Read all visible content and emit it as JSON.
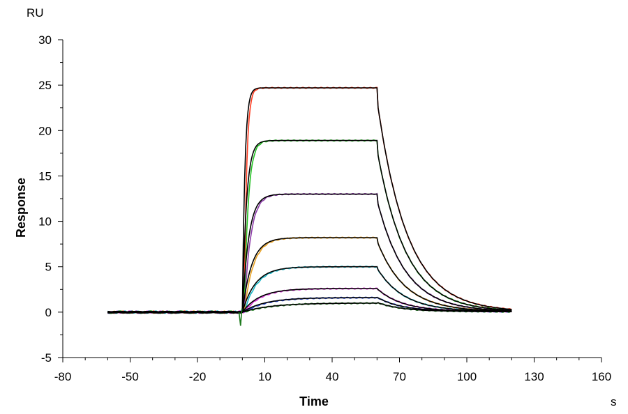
{
  "chart_data": {
    "type": "line",
    "title": "",
    "xlabel": "Time",
    "ylabel": "Response",
    "x_unit": "s",
    "y_unit": "RU",
    "xlim": [
      -80,
      160
    ],
    "ylim": [
      -5,
      30
    ],
    "x_ticks": [
      -80,
      -50,
      -20,
      10,
      40,
      70,
      100,
      130,
      160
    ],
    "y_ticks": [
      -5,
      0,
      5,
      10,
      15,
      20,
      25,
      30
    ],
    "x_tick_labels": [
      "-80",
      "-50",
      "-20",
      "10",
      "40",
      "70",
      "100",
      "130",
      "160"
    ],
    "y_tick_labels": [
      "-5",
      "0",
      "5",
      "10",
      "15",
      "20",
      "25",
      "30"
    ],
    "grid": false,
    "legend": "none",
    "association_start": 0,
    "dissociation_start": 60,
    "time_end": 120,
    "series": [
      {
        "plateau": 24.7,
        "kon": 0.9,
        "koff": 0.075,
        "color": "#ff3b1f",
        "fit_color": "#000000"
      },
      {
        "plateau": 18.9,
        "kon": 0.55,
        "koff": 0.078,
        "color": "#22c022",
        "fit_color": "#000000"
      },
      {
        "plateau": 13.0,
        "kon": 0.35,
        "koff": 0.08,
        "color": "#8b3aa8",
        "fit_color": "#000000"
      },
      {
        "plateau": 8.2,
        "kon": 0.24,
        "koff": 0.082,
        "color": "#e8a020",
        "fit_color": "#000000"
      },
      {
        "plateau": 5.0,
        "kon": 0.17,
        "koff": 0.085,
        "color": "#19b8c8",
        "fit_color": "#000000"
      },
      {
        "plateau": 2.6,
        "kon": 0.13,
        "koff": 0.09,
        "color": "#d02cd0",
        "fit_color": "#000000"
      },
      {
        "plateau": 1.6,
        "kon": 0.1,
        "koff": 0.095,
        "color": "#2848d0",
        "fit_color": "#000000"
      },
      {
        "plateau": 1.0,
        "kon": 0.08,
        "koff": 0.1,
        "color": "#1e7a1e",
        "fit_color": "#000000"
      }
    ]
  }
}
